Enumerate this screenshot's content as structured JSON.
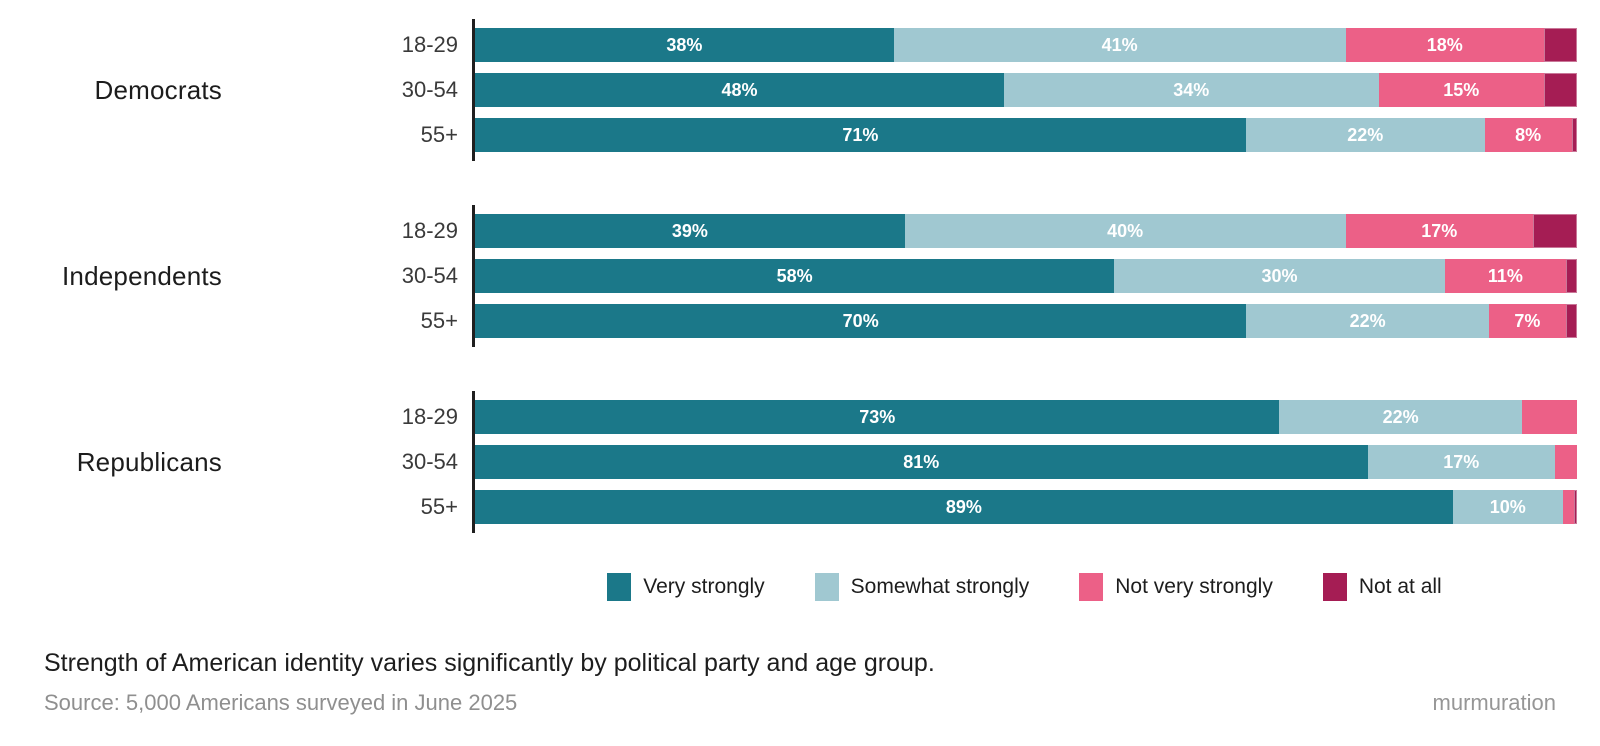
{
  "caption": {
    "text": "Strength of American identity varies significantly by political party and age group."
  },
  "footer": {
    "source": "Source: 5,000 Americans surveyed in June 2025",
    "brand": "murmuration"
  },
  "chart_data": {
    "type": "bar",
    "orientation": "horizontal",
    "stacked": true,
    "value_unit": "%",
    "axis_color": "#1f1f1f",
    "legend_position": "bottom",
    "categories": [
      "Very strongly",
      "Somewhat strongly",
      "Not very strongly",
      "Not at all"
    ],
    "colors": [
      "#1B7889",
      "#A0C8D1",
      "#EC6087",
      "#A51D54"
    ],
    "groups": [
      {
        "label": "Democrats",
        "rows": [
          {
            "age_label": "18-29",
            "segments": [
              {
                "category": "Very strongly",
                "value": 38,
                "label": "38%"
              },
              {
                "category": "Somewhat strongly",
                "value": 41,
                "label": "41%"
              },
              {
                "category": "Not very strongly",
                "value": 18,
                "label": "18%"
              },
              {
                "category": "Not at all",
                "value": 3,
                "label": ""
              }
            ]
          },
          {
            "age_label": "30-54",
            "segments": [
              {
                "category": "Very strongly",
                "value": 48,
                "label": "48%"
              },
              {
                "category": "Somewhat strongly",
                "value": 34,
                "label": "34%"
              },
              {
                "category": "Not very strongly",
                "value": 15,
                "label": "15%"
              },
              {
                "category": "Not at all",
                "value": 3,
                "label": ""
              }
            ]
          },
          {
            "age_label": "55+",
            "segments": [
              {
                "category": "Very strongly",
                "value": 71,
                "label": "71%"
              },
              {
                "category": "Somewhat strongly",
                "value": 22,
                "label": "22%"
              },
              {
                "category": "Not very strongly",
                "value": 8,
                "label": "8%"
              },
              {
                "category": "Not at all",
                "value": 0.5,
                "label": ""
              }
            ]
          }
        ]
      },
      {
        "label": "Independents",
        "rows": [
          {
            "age_label": "18-29",
            "segments": [
              {
                "category": "Very strongly",
                "value": 39,
                "label": "39%"
              },
              {
                "category": "Somewhat strongly",
                "value": 40,
                "label": "40%"
              },
              {
                "category": "Not very strongly",
                "value": 17,
                "label": "17%"
              },
              {
                "category": "Not at all",
                "value": 4,
                "label": ""
              }
            ]
          },
          {
            "age_label": "30-54",
            "segments": [
              {
                "category": "Very strongly",
                "value": 58,
                "label": "58%"
              },
              {
                "category": "Somewhat strongly",
                "value": 30,
                "label": "30%"
              },
              {
                "category": "Not very strongly",
                "value": 11,
                "label": "11%"
              },
              {
                "category": "Not at all",
                "value": 1,
                "label": ""
              }
            ]
          },
          {
            "age_label": "55+",
            "segments": [
              {
                "category": "Very strongly",
                "value": 70,
                "label": "70%"
              },
              {
                "category": "Somewhat strongly",
                "value": 22,
                "label": "22%"
              },
              {
                "category": "Not very strongly",
                "value": 7,
                "label": "7%"
              },
              {
                "category": "Not at all",
                "value": 1,
                "label": ""
              }
            ]
          }
        ]
      },
      {
        "label": "Republicans",
        "rows": [
          {
            "age_label": "18-29",
            "segments": [
              {
                "category": "Very strongly",
                "value": 73,
                "label": "73%"
              },
              {
                "category": "Somewhat strongly",
                "value": 22,
                "label": "22%"
              },
              {
                "category": "Not very strongly",
                "value": 5,
                "label": ""
              },
              {
                "category": "Not at all",
                "value": 0,
                "label": ""
              }
            ]
          },
          {
            "age_label": "30-54",
            "segments": [
              {
                "category": "Very strongly",
                "value": 81,
                "label": "81%"
              },
              {
                "category": "Somewhat strongly",
                "value": 17,
                "label": "17%"
              },
              {
                "category": "Not very strongly",
                "value": 2,
                "label": ""
              },
              {
                "category": "Not at all",
                "value": 0,
                "label": ""
              }
            ]
          },
          {
            "age_label": "55+",
            "segments": [
              {
                "category": "Very strongly",
                "value": 89,
                "label": "89%"
              },
              {
                "category": "Somewhat strongly",
                "value": 10,
                "label": "10%"
              },
              {
                "category": "Not very strongly",
                "value": 1,
                "label": ""
              },
              {
                "category": "Not at all",
                "value": 0.3,
                "label": ""
              }
            ]
          }
        ]
      }
    ]
  }
}
